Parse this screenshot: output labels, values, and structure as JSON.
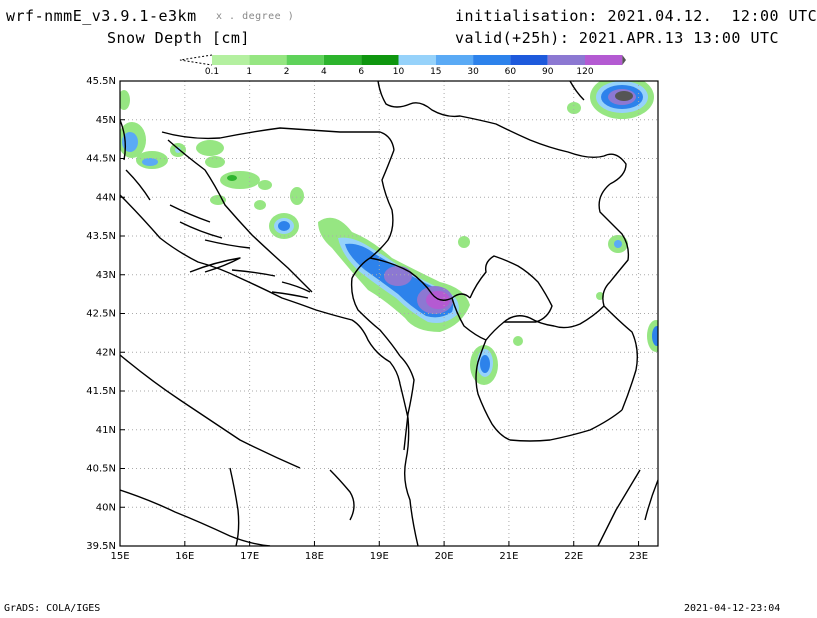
{
  "header": {
    "model": "wrf-nmmE_v3.9.1-e3km",
    "projection": "x . degree )",
    "field": "Snow Depth [cm]",
    "init": "initialisation: 2021.04.12.  12:00 UTC",
    "valid": "valid(+25h): 2021.APR.13 13:00 UTC"
  },
  "legend": {
    "labels": [
      "0.1",
      "1",
      "2",
      "4",
      "6",
      "10",
      "15",
      "30",
      "60",
      "90",
      "120"
    ],
    "colors": [
      "#b4f0a0",
      "#96e682",
      "#5fd25a",
      "#2db42d",
      "#0f960f",
      "#96d2fa",
      "#5aaaf5",
      "#2d82eb",
      "#1e5adc",
      "#8c78d2",
      "#b45ad2"
    ]
  },
  "axes": {
    "lat_labels": [
      "45.5N",
      "45N",
      "44.5N",
      "44N",
      "43.5N",
      "43N",
      "42.5N",
      "42N",
      "41.5N",
      "41N",
      "40.5N",
      "40N",
      "39.5N"
    ],
    "lon_labels": [
      "15E",
      "16E",
      "17E",
      "18E",
      "19E",
      "20E",
      "21E",
      "22E",
      "23E"
    ]
  },
  "footer": {
    "left": "GrADS: COLA/IGES",
    "right": "2021-04-12-23:04"
  }
}
